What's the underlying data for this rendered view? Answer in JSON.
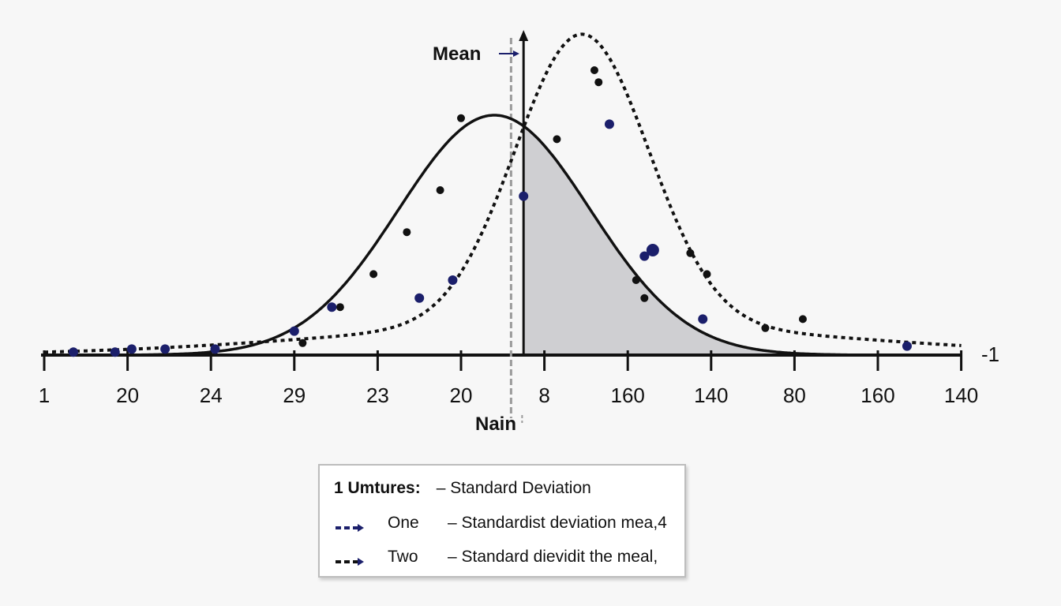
{
  "chart_data": {
    "type": "line",
    "x_tick_labels": [
      "1",
      "20",
      "24",
      "29",
      "23",
      "20",
      "8",
      "160",
      "140",
      "80",
      "160",
      "140"
    ],
    "right_label": "-1",
    "annotations": {
      "mean": "Mean",
      "nain": "Nain"
    },
    "series": [
      {
        "style": "solid",
        "color": "#111111",
        "mu": 5.4,
        "sigma": 1.15,
        "peak": 0.8,
        "points": [
          {
            "x": 5.0,
            "y": 0.79
          },
          {
            "x": 4.75,
            "y": 0.55
          },
          {
            "x": 4.35,
            "y": 0.41
          },
          {
            "x": 3.95,
            "y": 0.27
          },
          {
            "x": 3.55,
            "y": 0.16
          },
          {
            "x": 3.1,
            "y": 0.04
          },
          {
            "x": 6.15,
            "y": 0.72
          },
          {
            "x": 7.1,
            "y": 0.25
          },
          {
            "x": 7.2,
            "y": 0.19
          },
          {
            "x": 6.6,
            "y": 0.95
          }
        ]
      },
      {
        "style": "dotted",
        "color": "#1b1f6b",
        "mu": 6.45,
        "sigma": 0.8,
        "peak": 0.97,
        "tail_sigma": 3.0,
        "tail_weight": 0.1,
        "points": [
          {
            "x": 0.85,
            "y": 0.01
          },
          {
            "x": 1.05,
            "y": 0.02
          },
          {
            "x": 2.05,
            "y": 0.02
          },
          {
            "x": 3.0,
            "y": 0.08
          },
          {
            "x": 3.45,
            "y": 0.16
          },
          {
            "x": 4.5,
            "y": 0.19
          },
          {
            "x": 4.9,
            "y": 0.25
          },
          {
            "x": 5.75,
            "y": 0.53
          },
          {
            "x": 6.78,
            "y": 0.77
          },
          {
            "x": 7.2,
            "y": 0.33
          },
          {
            "x": 7.9,
            "y": 0.12
          },
          {
            "x": 10.35,
            "y": 0.03
          },
          {
            "x": 0.35,
            "y": 0.01
          },
          {
            "x": 1.45,
            "y": 0.02
          }
        ]
      }
    ],
    "extra_points": [
      {
        "x": 7.75,
        "y": 0.34,
        "color": "#111111"
      },
      {
        "x": 7.95,
        "y": 0.27,
        "color": "#111111"
      },
      {
        "x": 8.65,
        "y": 0.09,
        "color": "#111111"
      },
      {
        "x": 9.1,
        "y": 0.12,
        "color": "#111111"
      },
      {
        "x": 6.65,
        "y": 0.91,
        "color": "#111111"
      }
    ],
    "mean_x": 5.6,
    "shade_from_x": 5.75
  },
  "legend": {
    "title": "1 Umtures:",
    "rows": [
      {
        "name": "",
        "desc": "– Standard Deviation"
      },
      {
        "name": "One",
        "desc": "– Standardist deviation mea,4"
      },
      {
        "name": "Two",
        "desc": "– Standard dievidit the meal,"
      }
    ]
  },
  "colors": {
    "ink": "#111111",
    "navy": "#1b1f6b",
    "shade": "#cfcfd2",
    "mean_line": "#9a9a9a"
  }
}
